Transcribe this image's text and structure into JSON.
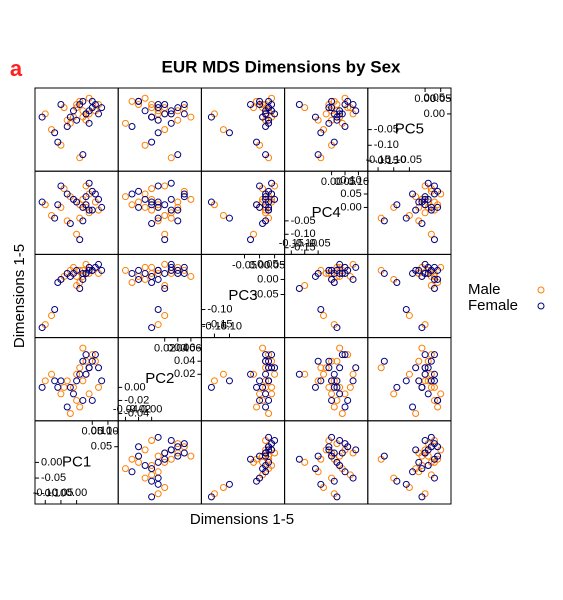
{
  "chart_data": {
    "type": "splom",
    "panel_label": "a",
    "title": "EUR MDS Dimensions by Sex",
    "xlabel": "Dimensions 1-5",
    "ylabel": "Dimensions 1-5",
    "variables": [
      {
        "name": "PC1",
        "lim": [
          -0.12,
          0.12
        ],
        "ticks": [
          {
            "value": -0.1,
            "label": "-0.10"
          },
          -0.05,
          {
            "value": 0,
            "label": "0.00"
          },
          0.05,
          {
            "value": 0.1,
            "label": "0.10"
          }
        ]
      },
      {
        "name": "PC2",
        "lim": [
          -0.045,
          0.07
        ],
        "ticks": [
          -0.04,
          -0.02,
          {
            "value": 0,
            "label": "0.00"
          },
          0.02,
          0.04,
          0.06
        ]
      },
      {
        "name": "PC3",
        "lim": [
          -0.18,
          0.07
        ],
        "ticks": [
          -0.15,
          {
            "value": -0.1,
            "label": "-0.10"
          },
          -0.05,
          {
            "value": 0,
            "label": "0.00"
          },
          0.05
        ]
      },
      {
        "name": "PC4",
        "lim": [
          -0.16,
          0.12
        ],
        "ticks": [
          -0.15,
          {
            "value": -0.1,
            "label": "-0.10"
          },
          -0.05,
          {
            "value": 0,
            "label": "0.00"
          },
          0.05,
          {
            "value": 0.1,
            "label": "0.10"
          }
        ]
      },
      {
        "name": "PC5",
        "lim": [
          -0.17,
          0.07
        ],
        "ticks": [
          -0.15,
          {
            "value": -0.1,
            "label": "-0.10"
          },
          -0.05,
          {
            "value": 0,
            "label": "0.00"
          },
          0.05
        ]
      }
    ],
    "series": [
      {
        "name": "Male",
        "color": "#ff7f00",
        "values": [
          [
            0.02,
            0.01,
            0.03,
            0.0,
            0.01
          ],
          [
            0.04,
            0.03,
            0.02,
            -0.02,
            0.0
          ],
          [
            -0.01,
            0.0,
            0.04,
            0.03,
            -0.01
          ],
          [
            0.0,
            -0.02,
            0.01,
            0.02,
            0.03
          ],
          [
            0.05,
            0.05,
            0.03,
            0.06,
            0.02
          ],
          [
            -0.03,
            0.01,
            0.02,
            -0.05,
            -0.02
          ],
          [
            0.01,
            -0.03,
            -0.01,
            0.01,
            0.04
          ],
          [
            -0.08,
            0.02,
            -0.12,
            -0.03,
            -0.05
          ],
          [
            0.03,
            0.02,
            0.05,
            0.08,
            0.0
          ],
          [
            -0.05,
            -0.01,
            0.0,
            0.0,
            -0.1
          ],
          [
            0.06,
            0.04,
            0.04,
            0.02,
            0.01
          ],
          [
            0.0,
            0.02,
            -0.02,
            -0.1,
            0.02
          ],
          [
            -0.02,
            -0.04,
            0.03,
            0.04,
            -0.03
          ],
          [
            0.07,
            0.0,
            0.02,
            -0.01,
            0.03
          ],
          [
            0.02,
            0.06,
            0.01,
            0.03,
            -0.01
          ],
          [
            -0.1,
            0.01,
            -0.15,
            0.01,
            0.0
          ],
          [
            0.04,
            -0.01,
            0.04,
            0.05,
            0.05
          ],
          [
            0.01,
            0.03,
            0.03,
            -0.04,
            -0.14
          ],
          [
            -0.04,
            0.0,
            0.01,
            0.07,
            0.02
          ],
          [
            0.03,
            0.04,
            0.02,
            0.0,
            -0.02
          ]
        ]
      },
      {
        "name": "Female",
        "color": "#000080",
        "values": [
          [
            0.03,
            0.02,
            0.02,
            0.01,
            0.0
          ],
          [
            0.05,
            0.04,
            0.03,
            -0.01,
            0.02
          ],
          [
            0.0,
            0.01,
            0.03,
            0.02,
            -0.02
          ],
          [
            -0.01,
            -0.01,
            0.02,
            0.03,
            0.01
          ],
          [
            0.06,
            0.05,
            0.04,
            0.05,
            0.03
          ],
          [
            -0.02,
            0.0,
            0.01,
            -0.06,
            -0.01
          ],
          [
            0.02,
            -0.02,
            0.0,
            0.0,
            0.04
          ],
          [
            -0.07,
            0.01,
            -0.1,
            -0.04,
            -0.06
          ],
          [
            0.04,
            0.03,
            0.04,
            0.09,
            0.01
          ],
          [
            -0.06,
            0.0,
            -0.01,
            0.01,
            -0.09
          ],
          [
            0.07,
            0.03,
            0.05,
            0.03,
            0.0
          ],
          [
            0.01,
            0.02,
            -0.03,
            -0.12,
            0.03
          ],
          [
            -0.03,
            -0.03,
            0.02,
            0.05,
            -0.04
          ],
          [
            0.08,
            0.01,
            0.03,
            0.0,
            0.02
          ],
          [
            0.03,
            0.05,
            0.02,
            0.04,
            0.0
          ],
          [
            -0.11,
            0.0,
            -0.16,
            0.02,
            -0.01
          ],
          [
            0.05,
            -0.02,
            0.03,
            0.06,
            0.04
          ],
          [
            0.02,
            0.04,
            0.02,
            -0.05,
            -0.13
          ],
          [
            -0.05,
            0.01,
            0.0,
            0.08,
            0.03
          ],
          [
            0.04,
            0.03,
            0.03,
            -0.01,
            -0.03
          ]
        ]
      }
    ],
    "legend": "right"
  }
}
